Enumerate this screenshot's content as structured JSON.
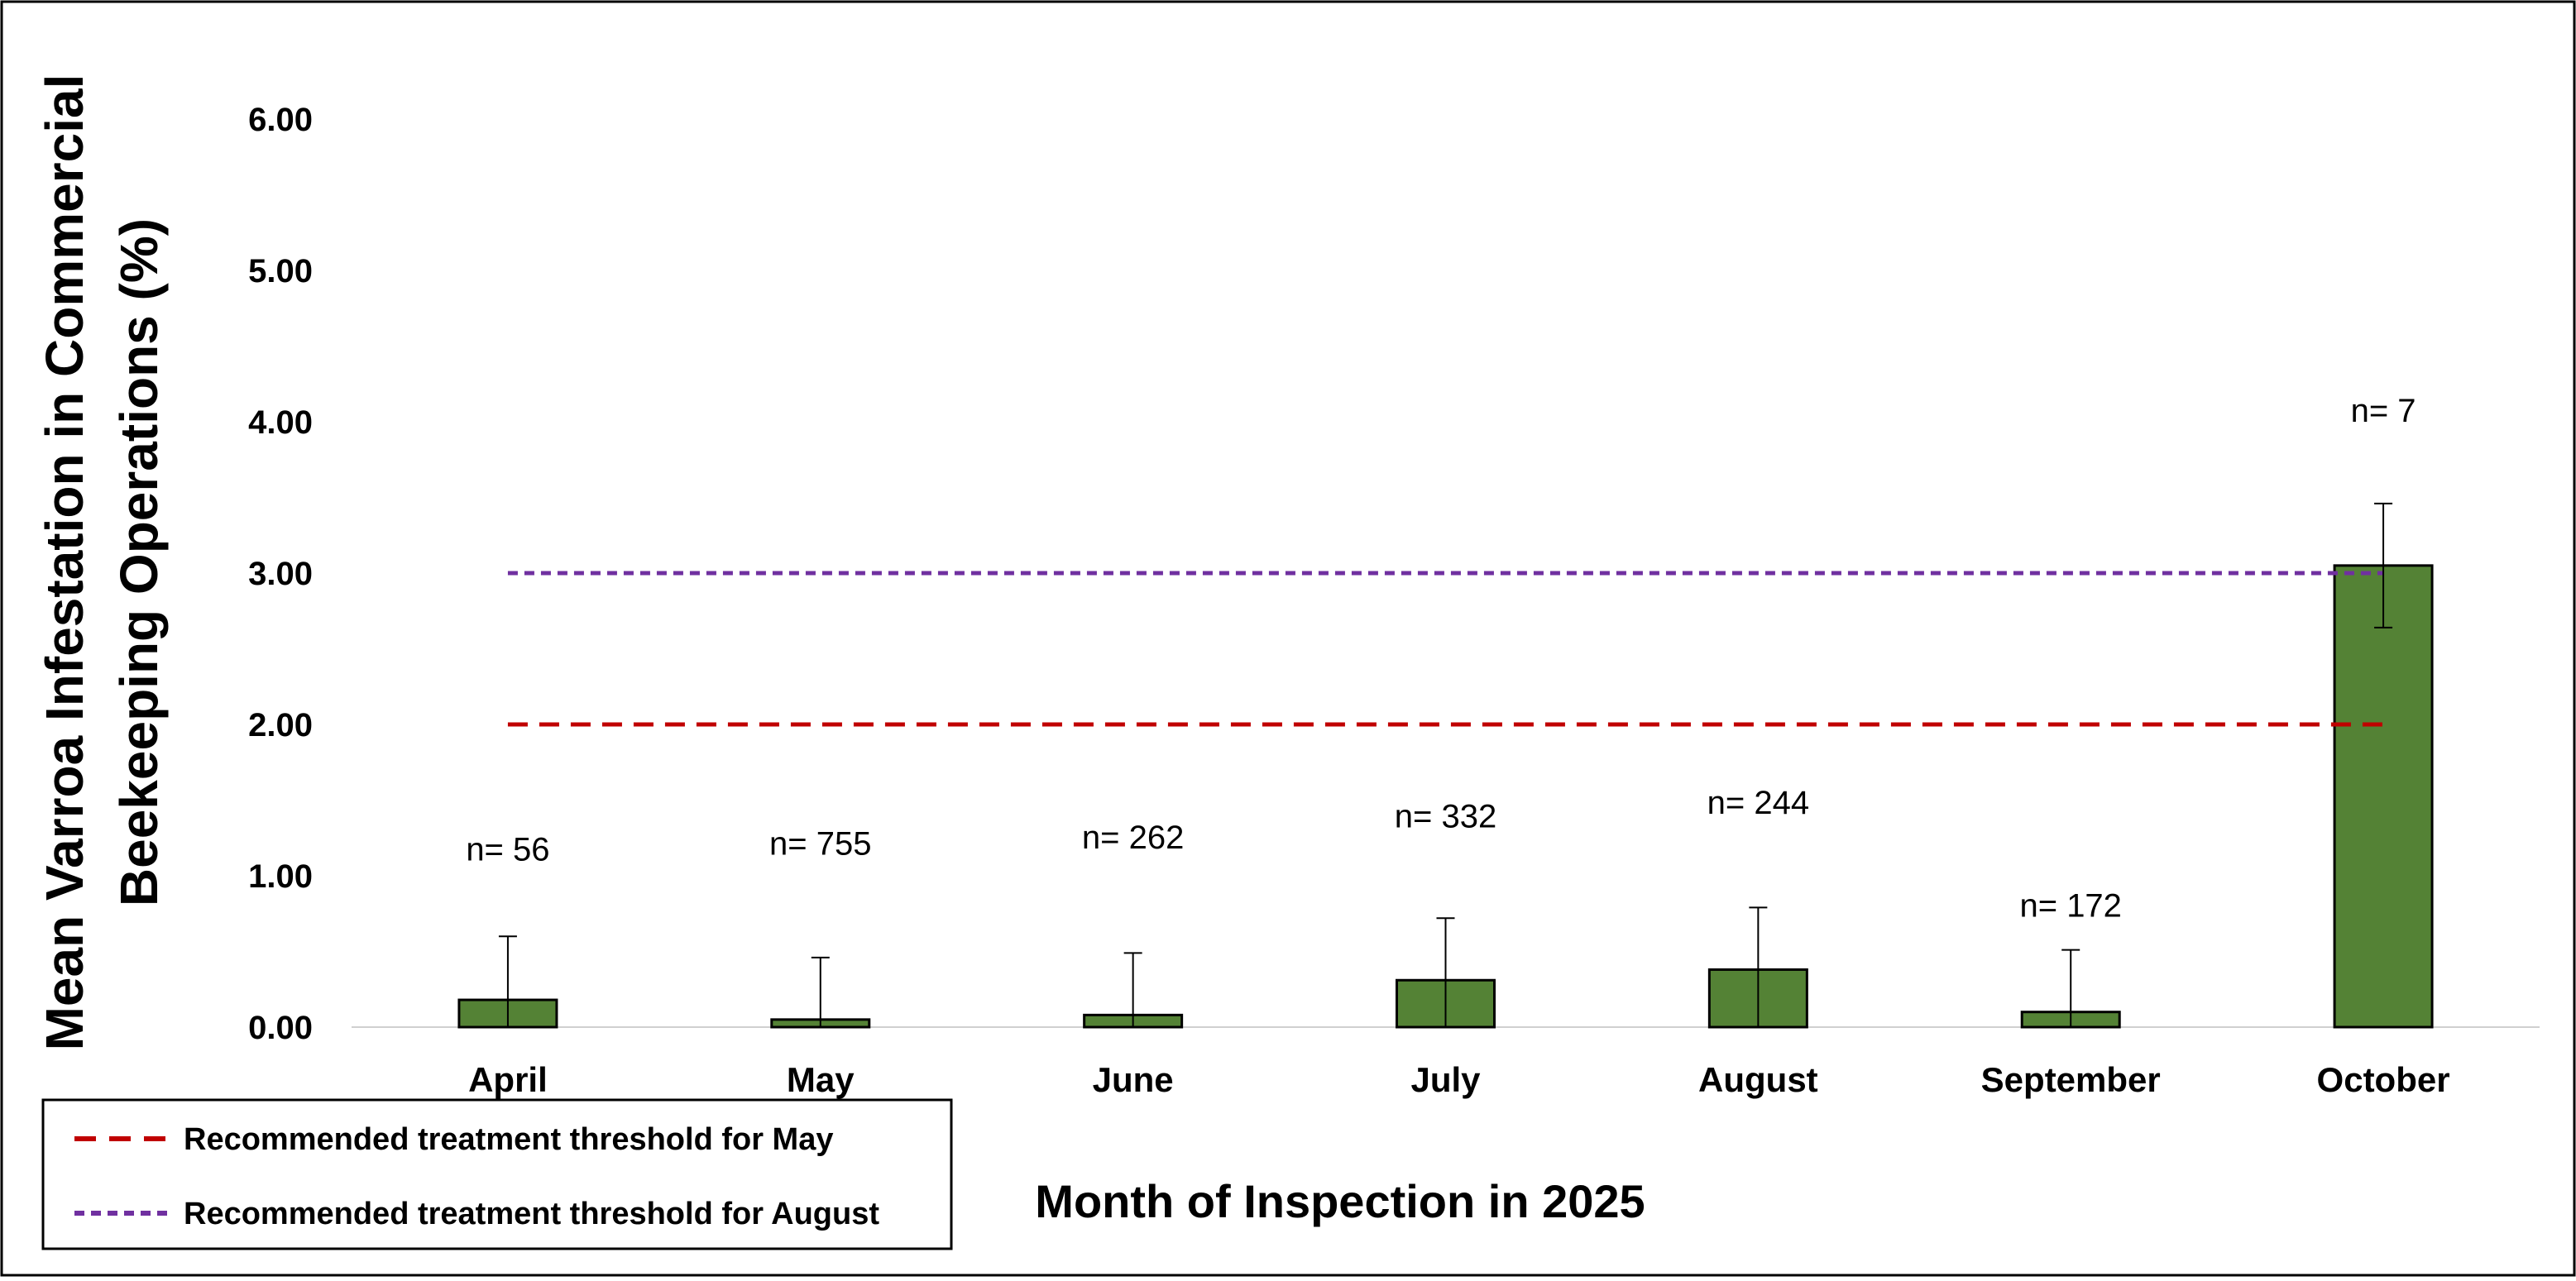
{
  "chart_data": {
    "type": "bar",
    "title": "",
    "xlabel": "Month of Inspection in 2025",
    "ylabel_lines": [
      "Mean Varroa Infestation in Commercial",
      "Beekeeping Operations (%)"
    ],
    "categories": [
      "April",
      "May",
      "June",
      "July",
      "August",
      "September",
      "October"
    ],
    "values": [
      0.18,
      0.05,
      0.08,
      0.31,
      0.38,
      0.1,
      3.05
    ],
    "error_upper": [
      0.6,
      0.46,
      0.49,
      0.72,
      0.79,
      0.51,
      3.46
    ],
    "error_lower": [
      0.0,
      0.0,
      0.0,
      0.0,
      0.0,
      0.0,
      2.64
    ],
    "sample_labels": [
      "n= 56",
      "n= 755",
      "n= 262",
      "n= 332",
      "n= 244",
      "n= 172",
      "n= 7"
    ],
    "sample_label_values": [
      1.1,
      1.14,
      1.18,
      1.32,
      1.41,
      0.73,
      4.0
    ],
    "ylim": [
      0,
      6
    ],
    "y_ticks": [
      "0.00",
      "1.00",
      "2.00",
      "3.00",
      "4.00",
      "5.00",
      "6.00"
    ],
    "grid": false,
    "bar_color": "#548235",
    "thresholds": [
      {
        "name": "Recommended treatment threshold for May",
        "value": 2.0,
        "color": "#C00000",
        "style": "dashed"
      },
      {
        "name": "Recommended treatment threshold for August",
        "value": 3.0,
        "color": "#7030A0",
        "style": "dotted-dash"
      }
    ],
    "legend_position": "bottom-left"
  }
}
